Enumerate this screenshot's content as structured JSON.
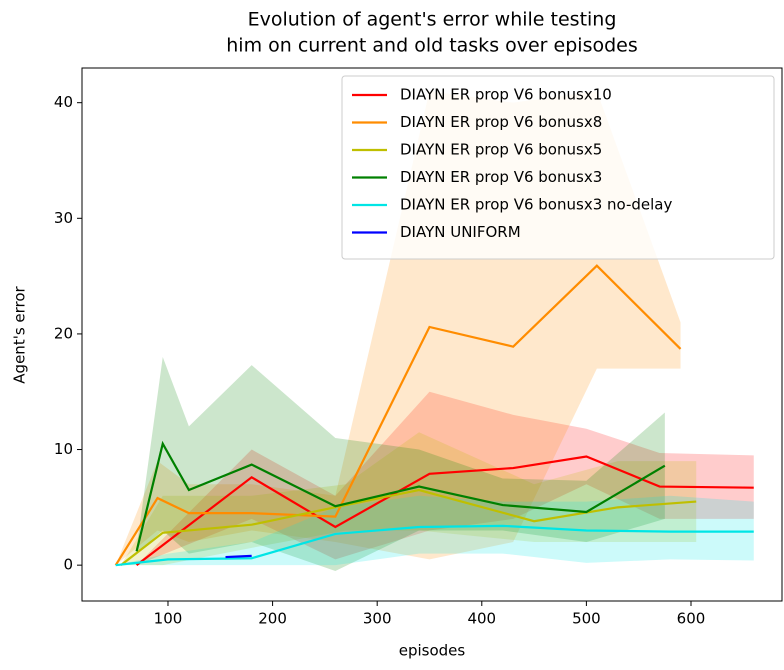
{
  "chart_data": {
    "type": "line",
    "title": [
      "Evolution of agent's error while testing",
      "him on current and old tasks over episodes"
    ],
    "x_label": "episodes",
    "y_label": "Agent's error",
    "xlim": [
      17.8,
      687
    ],
    "ylim": [
      -3.1,
      43.0
    ],
    "xticks": [
      100,
      200,
      300,
      400,
      500,
      600
    ],
    "yticks": [
      0,
      10,
      20,
      30,
      40
    ],
    "legend": "upper right",
    "band_opacity": 0.2,
    "series": [
      {
        "name": "DIAYN ER prop V6 bonusx10",
        "color": "#ff0000",
        "x": [
          70,
          180,
          260,
          350,
          430,
          500,
          570,
          660
        ],
        "values": [
          0,
          7.6,
          3.3,
          7.9,
          8.4,
          9.4,
          6.8,
          6.7
        ],
        "lower": [
          0,
          4,
          0.5,
          3,
          4,
          7,
          4,
          4
        ],
        "upper": [
          0,
          10,
          6,
          15,
          13,
          11.8,
          9.7,
          9.5
        ]
      },
      {
        "name": "DIAYN ER prop V6 bonusx8",
        "color": "#ff8c00",
        "x": [
          50,
          90,
          120,
          180,
          260,
          350,
          430,
          510,
          590
        ],
        "values": [
          0,
          5.8,
          4.5,
          4.5,
          4.2,
          20.6,
          18.9,
          25.9,
          18.7
        ],
        "lower": [
          0,
          3,
          2,
          3,
          2,
          0.5,
          2,
          17,
          17
        ],
        "upper": [
          0,
          9,
          7,
          7,
          6,
          41,
          40,
          41,
          21
        ]
      },
      {
        "name": "DIAYN ER prop V6 bonusx5",
        "color": "#bfbf00",
        "x": [
          55,
          95,
          180,
          270,
          340,
          450,
          530,
          605
        ],
        "values": [
          0,
          2.8,
          3.5,
          5.2,
          6.5,
          3.8,
          5.0,
          5.5
        ],
        "lower": [
          0,
          0,
          1.5,
          3,
          3,
          2,
          2,
          2
        ],
        "upper": [
          0,
          6,
          6,
          7,
          11.5,
          7,
          9,
          9
        ]
      },
      {
        "name": "DIAYN ER prop V6 bonusx3",
        "color": "#008000",
        "x": [
          70,
          95,
          120,
          180,
          260,
          340,
          420,
          500,
          575
        ],
        "values": [
          1.2,
          10.5,
          6.5,
          8.7,
          5.1,
          6.8,
          5.2,
          4.6,
          8.6
        ],
        "lower": [
          1,
          3,
          1,
          2,
          -0.5,
          3,
          3,
          2,
          4
        ],
        "upper": [
          1.5,
          18,
          12,
          17.3,
          11,
          10,
          7.5,
          7.3,
          13.2
        ]
      },
      {
        "name": "DIAYN ER prop V6 bonusx3 no-delay",
        "color": "#00e5e5",
        "x": [
          50,
          100,
          180,
          260,
          340,
          420,
          500,
          580,
          660
        ],
        "values": [
          0,
          0.5,
          0.6,
          2.7,
          3.3,
          3.4,
          3.0,
          2.9,
          2.9
        ],
        "lower": [
          0,
          0,
          0,
          0,
          1,
          1,
          0.2,
          0.5,
          0.4
        ],
        "upper": [
          0,
          1,
          2,
          5,
          6,
          5.5,
          5.5,
          6,
          5.5
        ]
      },
      {
        "name": "DIAYN UNIFORM",
        "color": "#0000ff",
        "x": [
          155,
          180
        ],
        "values": [
          0.7,
          0.8
        ]
      }
    ]
  }
}
